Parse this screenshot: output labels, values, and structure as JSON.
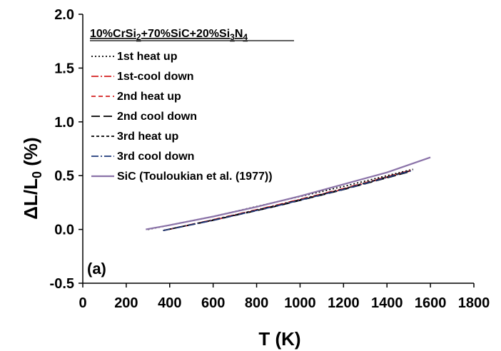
{
  "chart_data": {
    "type": "line",
    "title": "",
    "legend_title": {
      "segments": [
        {
          "text": "10%CrSi",
          "sub": false
        },
        {
          "text": "2",
          "sub": true
        },
        {
          "text": "+70%SiC+20%Si",
          "sub": false
        },
        {
          "text": "3",
          "sub": true
        },
        {
          "text": "N",
          "sub": false
        },
        {
          "text": "4",
          "sub": true
        }
      ]
    },
    "panel_label": "(a)",
    "xlabel": "T (K)",
    "ylabel": {
      "segments": [
        {
          "text": "ΔL/L",
          "sub": false
        },
        {
          "text": "0",
          "sub": true
        },
        {
          "text": " (%)",
          "sub": false
        }
      ]
    },
    "xlim": [
      0,
      1800
    ],
    "ylim": [
      -0.5,
      2.0
    ],
    "xticks": [
      0,
      200,
      400,
      600,
      800,
      1000,
      1200,
      1400,
      1600,
      1800
    ],
    "yticks": [
      -0.5,
      0.0,
      0.5,
      1.0,
      1.5,
      2.0
    ],
    "xtick_labels": [
      "0",
      "200",
      "400",
      "600",
      "800",
      "1000",
      "1200",
      "1400",
      "1600",
      "1800"
    ],
    "ytick_labels": [
      "-0.5",
      "0.0",
      "0.5",
      "1.0",
      "1.5",
      "2.0"
    ],
    "grid": false,
    "legend_position": "top-left",
    "series": [
      {
        "name": "1st heat up",
        "color": "#000000",
        "dash": "2,3",
        "x": [
          300,
          600,
          900,
          1200,
          1520
        ],
        "y": [
          0.0,
          0.12,
          0.26,
          0.4,
          0.56
        ]
      },
      {
        "name": "1st-cool down",
        "color": "#d42020",
        "dash": "10,3,2,3",
        "x": [
          370,
          600,
          900,
          1200,
          1510
        ],
        "y": [
          -0.01,
          0.09,
          0.23,
          0.38,
          0.55
        ]
      },
      {
        "name": "2nd heat up",
        "color": "#d42020",
        "dash": "6,4",
        "x": [
          370,
          600,
          900,
          1200,
          1510
        ],
        "y": [
          -0.01,
          0.085,
          0.225,
          0.375,
          0.545
        ]
      },
      {
        "name": "2nd cool down",
        "color": "#000000",
        "dash": "12,5",
        "x": [
          370,
          600,
          900,
          1200,
          1510
        ],
        "y": [
          -0.01,
          0.085,
          0.22,
          0.37,
          0.54
        ]
      },
      {
        "name": "3rd heat up",
        "color": "#000000",
        "dash": "4,3",
        "x": [
          370,
          600,
          900,
          1200,
          1510
        ],
        "y": [
          -0.01,
          0.088,
          0.226,
          0.376,
          0.548
        ]
      },
      {
        "name": "3rd cool down",
        "color": "#1f3a7a",
        "dash": "10,3,2,3",
        "x": [
          370,
          600,
          900,
          1200,
          1520
        ],
        "y": [
          -0.01,
          0.085,
          0.222,
          0.372,
          0.55
        ]
      },
      {
        "name": "SiC (Touloukian et al. (1977))",
        "color": "#8a72a8",
        "dash": "",
        "x": [
          290,
          400,
          600,
          800,
          1000,
          1200,
          1400,
          1600
        ],
        "y": [
          0.0,
          0.04,
          0.12,
          0.21,
          0.31,
          0.42,
          0.53,
          0.67
        ]
      }
    ]
  }
}
